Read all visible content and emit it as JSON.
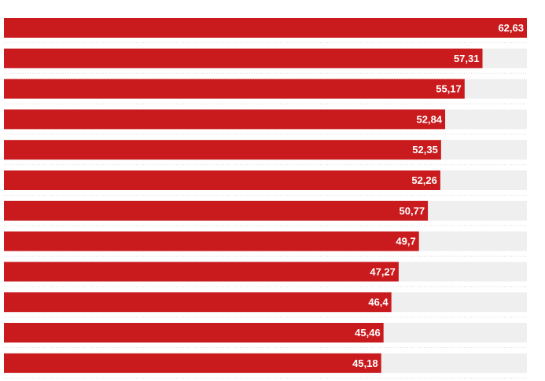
{
  "chart_data": {
    "type": "bar",
    "orientation": "horizontal",
    "values": [
      62.63,
      57.31,
      55.17,
      52.84,
      52.35,
      52.26,
      50.77,
      49.7,
      47.27,
      46.4,
      45.46,
      45.18
    ],
    "labels": [
      "62,63",
      "57,31",
      "55,17",
      "52,84",
      "52,35",
      "52,26",
      "50,77",
      "49,7",
      "47,27",
      "46,4",
      "45,46",
      "45,18"
    ],
    "xlim": [
      0,
      62.63
    ],
    "grid": false,
    "legend": "none",
    "colors": {
      "bar": "#c91b1e",
      "track": "#efefef",
      "separator": "#d9d9d9",
      "label": "#ffffff"
    }
  }
}
